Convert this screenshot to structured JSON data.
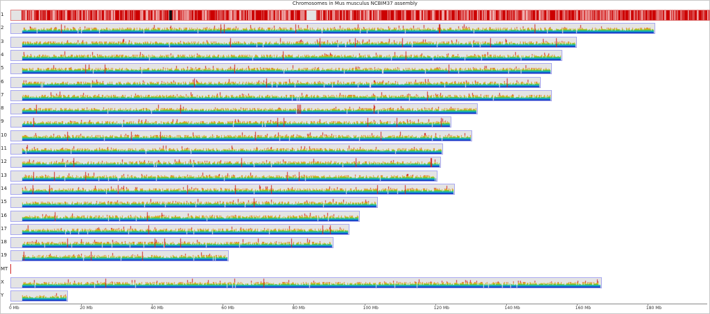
{
  "title": "Chromosomes in Mus musculus NCBIM37 assembly",
  "selected_chromosome": "1",
  "chromosomes": [
    {
      "name": "1",
      "length_mb": 197.2
    },
    {
      "name": "2",
      "length_mb": 181.7
    },
    {
      "name": "3",
      "length_mb": 159.6
    },
    {
      "name": "4",
      "length_mb": 155.6
    },
    {
      "name": "5",
      "length_mb": 152.5
    },
    {
      "name": "6",
      "length_mb": 149.5
    },
    {
      "name": "7",
      "length_mb": 152.5
    },
    {
      "name": "8",
      "length_mb": 131.7
    },
    {
      "name": "9",
      "length_mb": 124.1
    },
    {
      "name": "10",
      "length_mb": 130.0
    },
    {
      "name": "11",
      "length_mb": 121.8
    },
    {
      "name": "12",
      "length_mb": 121.3
    },
    {
      "name": "13",
      "length_mb": 120.3
    },
    {
      "name": "14",
      "length_mb": 125.2
    },
    {
      "name": "15",
      "length_mb": 103.5
    },
    {
      "name": "16",
      "length_mb": 98.3
    },
    {
      "name": "17",
      "length_mb": 95.3
    },
    {
      "name": "18",
      "length_mb": 90.8
    },
    {
      "name": "19",
      "length_mb": 61.3
    },
    {
      "name": "MT",
      "length_mb": 0.016
    },
    {
      "name": "X",
      "length_mb": 166.7
    },
    {
      "name": "Y",
      "length_mb": 15.9
    }
  ],
  "axis": {
    "ticks": [
      "0 Mb",
      "20 Mb",
      "40 Mb",
      "60 Mb",
      "80 Mb",
      "100 Mb",
      "120 Mb",
      "140 Mb",
      "160 Mb",
      "180 Mb"
    ]
  },
  "colors": {
    "bar_bg": "#e4e4e4",
    "bar_border": "#a8a8f0",
    "selected": "#cc0000",
    "density_low": "#1030c0",
    "density_high": "#e02020"
  }
}
